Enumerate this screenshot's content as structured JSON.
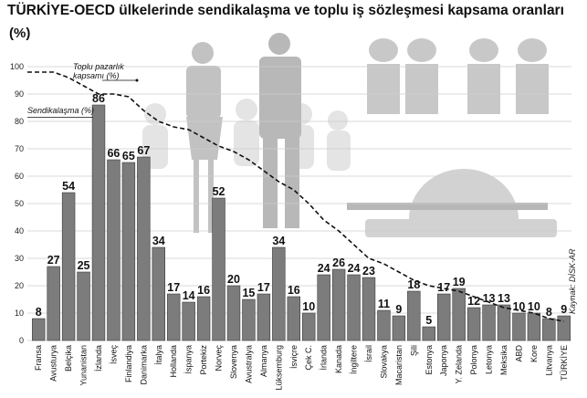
{
  "title": "TÜRKİYE-OECD ülkelerinde sendikalaşma ve toplu iş sözleşmesi kapsama oranları",
  "unit": "(%)",
  "source": "Kaynak: DİSK-AR",
  "chart_data": {
    "type": "bar",
    "ylim": [
      0,
      100
    ],
    "yticks": [
      0,
      10,
      20,
      30,
      40,
      50,
      60,
      70,
      80,
      90,
      100
    ],
    "categories": [
      "Fransa",
      "Avusturya",
      "Belçika",
      "Yunanistan",
      "İzlanda",
      "İsveç",
      "Finlandiya",
      "Danimarka",
      "İtalya",
      "Hollanda",
      "İspanya",
      "Portekiz",
      "Norveç",
      "Slovenya",
      "Avustralya",
      "Almanya",
      "Lüksemburg",
      "İsviçre",
      "Çek C.",
      "İrlanda",
      "Kanada",
      "İngiltere",
      "İsrail",
      "Slovakya",
      "Macaristan",
      "Şili",
      "Estonya",
      "Japonya",
      "Y. Zelanda",
      "Polonya",
      "Letonya",
      "Meksika",
      "ABD",
      "Kore",
      "Litvanya",
      "TÜRKİYE"
    ],
    "series": [
      {
        "name": "Sendikalaşma (%)",
        "type": "bar",
        "values": [
          8,
          27,
          54,
          25,
          86,
          66,
          65,
          67,
          34,
          17,
          14,
          16,
          52,
          20,
          15,
          17,
          34,
          16,
          10,
          24,
          26,
          24,
          23,
          11,
          9,
          18,
          5,
          17,
          19,
          12,
          13,
          13,
          10,
          10,
          8,
          9
        ]
      },
      {
        "name": "Toplu pazarlık kapsamı (%)",
        "type": "line",
        "values": [
          98,
          98,
          96,
          93,
          90,
          90,
          89,
          84,
          80,
          78,
          77,
          74,
          71,
          69,
          66,
          62,
          58,
          55,
          50,
          44,
          40,
          35,
          30,
          28,
          25,
          22,
          20,
          19,
          18,
          16,
          14,
          12,
          11,
          10,
          8,
          7
        ]
      }
    ],
    "colors": {
      "bar": "#7c7c7c",
      "bar_edge": "#3c3c3c",
      "line": "#111111",
      "grid": "#cccccc"
    }
  }
}
